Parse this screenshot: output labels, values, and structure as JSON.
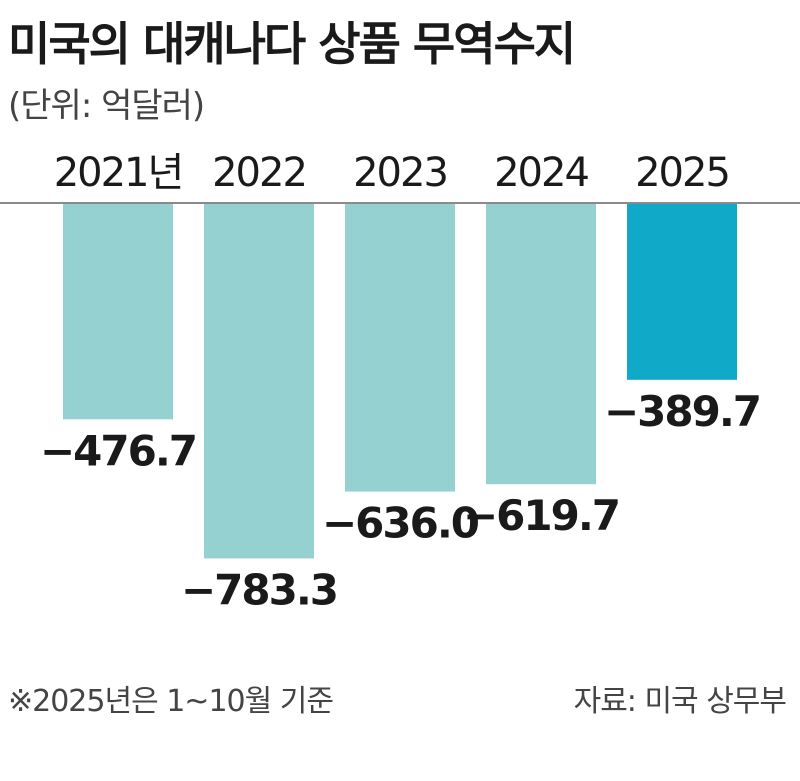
{
  "title": "미국의 대캐나다 상품 무역수지",
  "unit": "(단위: 억달러)",
  "note": "※2025년은 1~10월 기준",
  "source": "자료: 미국 상무부",
  "colors": {
    "bar": "#95d1d1",
    "bar_highlight": "#10a9c7",
    "baseline": "#8a8a8a",
    "text": "#1a1a1a"
  },
  "chart_data": {
    "type": "bar",
    "categories": [
      "2021년",
      "2022",
      "2023",
      "2024",
      "2025"
    ],
    "values": [
      -476.7,
      -783.3,
      -636.0,
      -619.7,
      -389.7
    ],
    "value_labels": [
      "−476.7",
      "−783.3",
      "−636.0",
      "−619.7",
      "−389.7"
    ],
    "highlight_index": 4,
    "ylim": [
      -800,
      0
    ],
    "title": "미국의 대캐나다 상품 무역수지",
    "xlabel": "",
    "ylabel": "",
    "grid": false
  }
}
